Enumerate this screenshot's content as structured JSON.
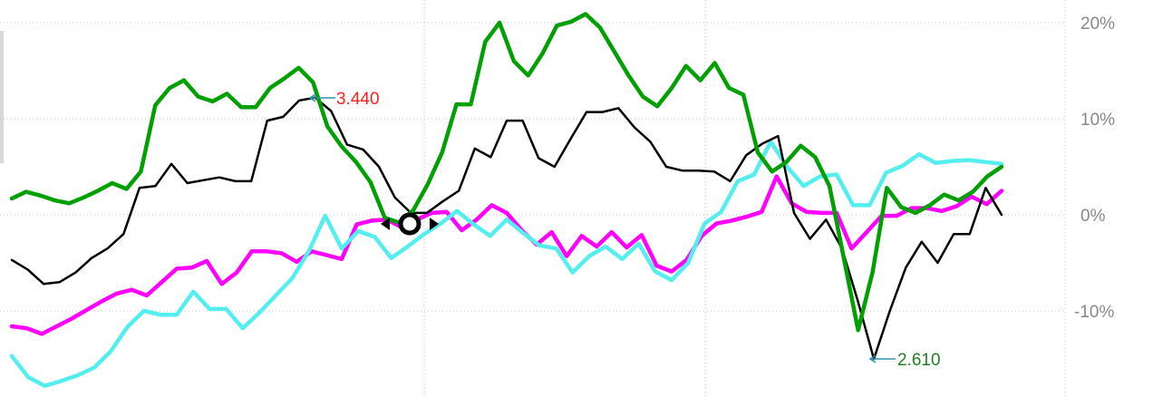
{
  "chart_data": {
    "type": "line",
    "y_tick_labels": [
      "20%",
      "10%",
      "0%",
      "-10%"
    ],
    "y_ticks": [
      20,
      10,
      0,
      -10
    ],
    "ylim": [
      -18.5,
      22
    ],
    "x_count": 101,
    "grid": true,
    "colors": {
      "green": "#00a000",
      "black": "#000000",
      "magenta": "#ff00ff",
      "cyan": "#55eeee",
      "annotation_red": "#ff2020",
      "annotation_green": "#208020",
      "annotation_arrow": "#3090b0"
    },
    "series": [
      {
        "color": "#00a000",
        "values": [
          1.7,
          2.4,
          2.0,
          1.5,
          1.2,
          1.8,
          2.5,
          3.3,
          2.7,
          4.5,
          11.4,
          13.2,
          14.0,
          12.3,
          11.8,
          12.6,
          11.2,
          11.2,
          13.2,
          14.2,
          15.3,
          13.8,
          9.2,
          7.1,
          5.5,
          3.4,
          -0.3,
          -0.8,
          0.5,
          3.2,
          6.5,
          11.5,
          11.5,
          18.0,
          20.0,
          16.0,
          14.5,
          16.8,
          19.7,
          20.1,
          20.9,
          19.5,
          17.0,
          14.5,
          12.3,
          11.3,
          13.2,
          15.5,
          14.0,
          15.8,
          13.2,
          12.5,
          6.5,
          4.5,
          5.5,
          7.2,
          6.0,
          3.0,
          -4.5,
          -12.0,
          -6.0,
          2.8,
          0.8,
          0.2,
          1.0,
          2.1,
          1.5,
          2.4,
          4.0,
          5.0
        ]
      },
      {
        "color": "#000000",
        "values": [
          -4.7,
          -5.7,
          -7.2,
          -7.0,
          -6.0,
          -4.5,
          -3.5,
          -2.0,
          2.8,
          3.0,
          5.3,
          3.3,
          3.6,
          3.9,
          3.5,
          3.5,
          9.8,
          10.2,
          11.9,
          12.2,
          10.8,
          7.3,
          6.8,
          5.0,
          1.8,
          0.2,
          0.2,
          1.4,
          2.5,
          6.9,
          6.0,
          9.8,
          9.8,
          5.9,
          5.0,
          7.9,
          10.7,
          10.7,
          11.1,
          9.1,
          7.6,
          5.0,
          4.6,
          4.6,
          4.5,
          3.5,
          6.2,
          7.4,
          8.2,
          0.2,
          -2.5,
          -0.5,
          -3.5,
          -9.0,
          -15.0,
          -10.0,
          -5.5,
          -2.8,
          -5.0,
          -2.0,
          -2.0,
          2.8,
          0.0
        ]
      },
      {
        "color": "#ff00ff",
        "values": [
          -11.6,
          -11.8,
          -12.4,
          -11.6,
          -10.8,
          -9.9,
          -9.0,
          -8.2,
          -7.8,
          -8.4,
          -7.0,
          -5.6,
          -5.5,
          -4.8,
          -7.2,
          -6.0,
          -3.8,
          -3.8,
          -4.0,
          -4.9,
          -3.8,
          -4.2,
          -4.6,
          -1.0,
          -0.6,
          -0.5,
          -1.3,
          -0.5,
          0.2,
          0.3,
          -1.6,
          -0.5,
          1.0,
          0.2,
          -1.6,
          -3.1,
          -1.8,
          -4.3,
          -2.2,
          -3.3,
          -1.8,
          -3.4,
          -2.1,
          -5.3,
          -5.9,
          -4.7,
          -2.2,
          -0.9,
          -0.6,
          -0.2,
          0.3,
          4.0,
          1.2,
          0.3,
          0.2,
          0.2,
          -3.5,
          -1.8,
          -0.1,
          -0.1,
          0.7,
          0.7,
          0.4,
          0.9,
          1.9,
          1.1,
          2.5
        ]
      },
      {
        "color": "#55eeee",
        "values": [
          -14.7,
          -16.9,
          -17.8,
          -17.3,
          -16.7,
          -15.9,
          -14.2,
          -11.7,
          -10.0,
          -10.4,
          -10.4,
          -8.0,
          -9.8,
          -9.8,
          -11.8,
          -10.2,
          -8.4,
          -6.6,
          -3.8,
          -0.1,
          -3.5,
          -1.7,
          -2.3,
          -4.5,
          -3.3,
          -2.0,
          -0.9,
          0.4,
          -1.0,
          -2.2,
          -0.5,
          -1.9,
          -3.2,
          -3.5,
          -6.0,
          -4.3,
          -3.3,
          -4.6,
          -3.0,
          -5.9,
          -6.8,
          -5.0,
          -0.9,
          0.3,
          3.5,
          4.2,
          7.6,
          5.0,
          3.0,
          4.0,
          4.2,
          1.0,
          1.0,
          4.4,
          5.1,
          6.3,
          5.4,
          5.6,
          5.7,
          5.5,
          5.3
        ]
      }
    ],
    "annotations": {
      "max_label": "3.440",
      "min_label": "2.610"
    }
  }
}
